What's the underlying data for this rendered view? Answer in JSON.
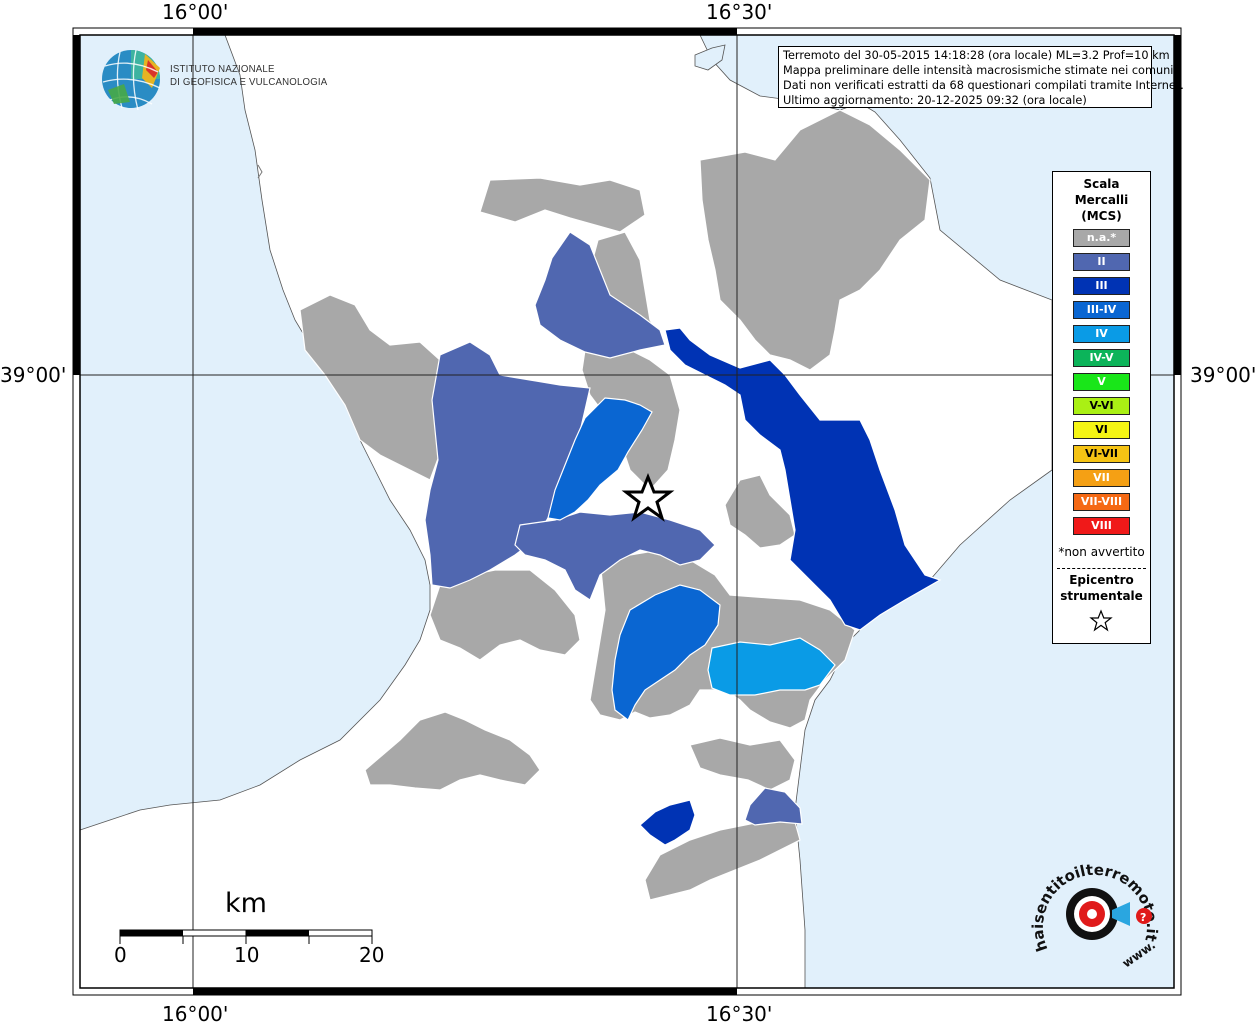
{
  "info": {
    "line1": "Terremoto del 30-05-2015 14:18:28 (ora locale) ML=3.2 Prof=10 km",
    "line2": "Mappa preliminare delle intensità macrosismiche stimate nei comuni",
    "line3": "Dati non verificati estratti da 68 questionari compilati tramite Internet.",
    "line4": "Ultimo aggiornamento: 20-12-2025 09:32 (ora locale)"
  },
  "coords": {
    "lon_left": "16°00'",
    "lon_right": "16°30'",
    "lat": "39°00'"
  },
  "logo": {
    "line1": "ISTITUTO NAZIONALE",
    "line2": "DI GEOFISICA E VULCANOLOGIA"
  },
  "legend": {
    "title1": "Scala",
    "title2": "Mercalli",
    "title3": "(MCS)",
    "items": [
      {
        "label": "n.a.*",
        "color": "#a8a8a8"
      },
      {
        "label": "II",
        "color": "#5067b0"
      },
      {
        "label": "III",
        "color": "#0033b4"
      },
      {
        "label": "III-IV",
        "color": "#0a66d2"
      },
      {
        "label": "IV",
        "color": "#0a9be6"
      },
      {
        "label": "IV-V",
        "color": "#0cb45a"
      },
      {
        "label": "V",
        "color": "#19e619"
      },
      {
        "label": "V-VI",
        "color": "#aaf014"
      },
      {
        "label": "VI",
        "color": "#f5f514"
      },
      {
        "label": "VI-VII",
        "color": "#f5c314"
      },
      {
        "label": "VII",
        "color": "#f5a014"
      },
      {
        "label": "VII-VIII",
        "color": "#f56914"
      },
      {
        "label": "VIII",
        "color": "#f01919"
      }
    ],
    "note": "*non avvertito",
    "epi1": "Epicentro",
    "epi2": "strumentale"
  },
  "scale_bar": {
    "unit": "km",
    "labels": [
      "0",
      "10",
      "20"
    ]
  },
  "brand": {
    "text": "haisentitoilterremoto.it",
    "www": "www."
  },
  "colors": {
    "sea": "#e1f0fb",
    "land": "#ffffff",
    "na": "#a8a8a8"
  }
}
